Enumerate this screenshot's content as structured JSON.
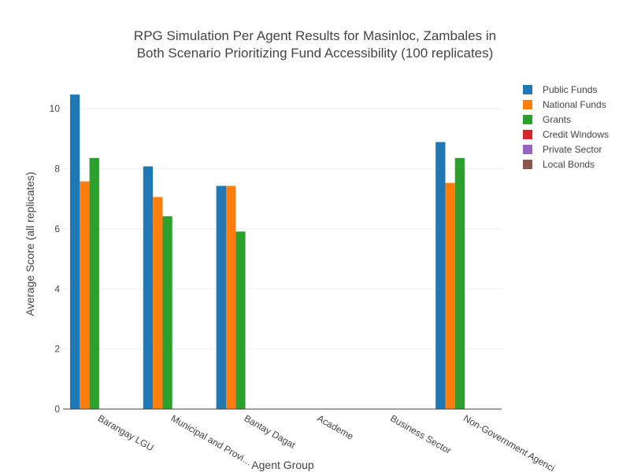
{
  "chart_data": {
    "type": "bar",
    "title_lines": [
      "RPG Simulation Per Agent Results for Masinloc, Zambales in",
      "Both Scenario Prioritizing Fund Accessibility (100 replicates)"
    ],
    "xlabel": "Agent Group",
    "ylabel": "Average Score (all replicates)",
    "ylim": [
      0,
      11
    ],
    "yticks": [
      0,
      2,
      4,
      6,
      8,
      10
    ],
    "grid": true,
    "legend_position": "top-right",
    "categories": [
      "Barangay LGU",
      "Municipal and Provincial",
      "Bantay Dagat",
      "Academe",
      "Business Sector",
      "Non-Government Agencies"
    ],
    "category_labels": [
      "Barangay LGU",
      "Municipal and Provi…",
      "Bantay Dagat",
      "Academe",
      "Business Sector",
      "Non-Government Agenci…"
    ],
    "series": [
      {
        "name": "Public Funds",
        "color": "#1f77b4",
        "values": [
          10.47,
          8.08,
          7.43,
          0,
          0,
          8.89
        ]
      },
      {
        "name": "National Funds",
        "color": "#ff7f0e",
        "values": [
          7.58,
          7.06,
          7.43,
          0,
          0,
          7.53
        ]
      },
      {
        "name": "Grants",
        "color": "#2ca02c",
        "values": [
          8.36,
          6.42,
          5.91,
          0,
          0,
          8.36
        ]
      },
      {
        "name": "Credit Windows",
        "color": "#d62728",
        "values": [
          0,
          0,
          0,
          0,
          0,
          0
        ]
      },
      {
        "name": "Private Sector",
        "color": "#9467bd",
        "values": [
          0,
          0,
          0,
          0,
          0,
          0
        ]
      },
      {
        "name": "Local Bonds",
        "color": "#8c564b",
        "values": [
          0,
          0,
          0,
          0,
          0,
          0
        ]
      }
    ]
  }
}
